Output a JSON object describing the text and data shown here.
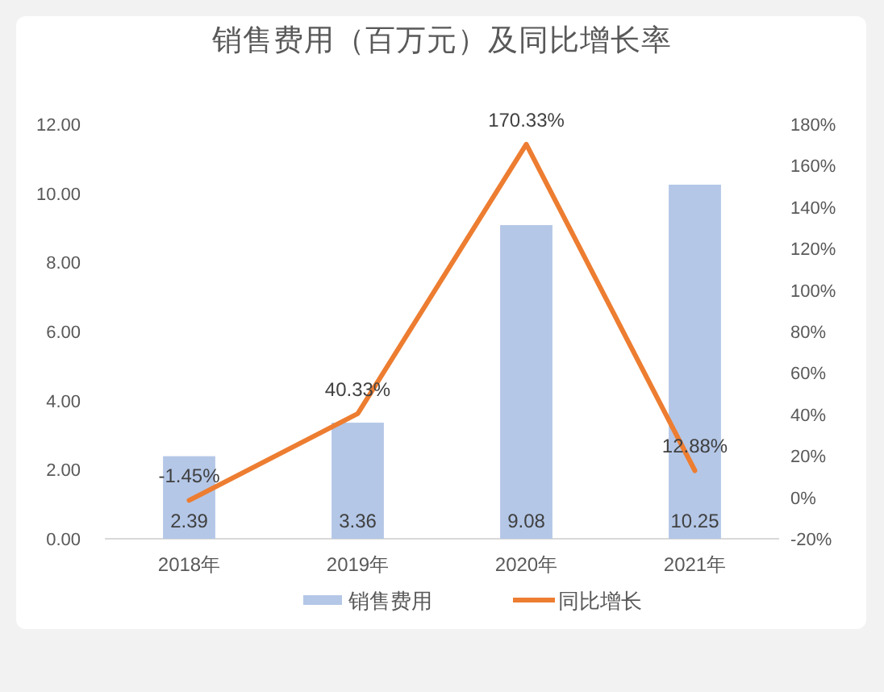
{
  "chart_data": {
    "type": "bar",
    "title": "销售费用（百万元）及同比增长率",
    "categories": [
      "2018年",
      "2019年",
      "2020年",
      "2021年"
    ],
    "series": [
      {
        "name": "销售费用",
        "color": "#b4c7e7",
        "values": [
          2.39,
          3.36,
          9.08,
          10.25
        ],
        "value_labels": [
          "2.39",
          "3.36",
          "9.08",
          "10.25"
        ]
      },
      {
        "name": "同比增长",
        "type": "line",
        "axis": "y2",
        "color": "#ed7d31",
        "values": [
          -1.45,
          40.33,
          170.33,
          12.88
        ],
        "value_labels": [
          "-1.45%",
          "40.33%",
          "170.33%",
          "12.88%"
        ]
      }
    ],
    "ylim": [
      0,
      12
    ],
    "yticks": [
      {
        "value": 0,
        "label": "0.00"
      },
      {
        "value": 2,
        "label": "2.00"
      },
      {
        "value": 4,
        "label": "4.00"
      },
      {
        "value": 6,
        "label": "6.00"
      },
      {
        "value": 8,
        "label": "8.00"
      },
      {
        "value": 10,
        "label": "10.00"
      },
      {
        "value": 12,
        "label": "12.00"
      }
    ],
    "y2lim": [
      -20,
      180
    ],
    "y2ticks": [
      {
        "value": -20,
        "label": "-20%"
      },
      {
        "value": 0,
        "label": "0%"
      },
      {
        "value": 20,
        "label": "20%"
      },
      {
        "value": 40,
        "label": "40%"
      },
      {
        "value": 60,
        "label": "60%"
      },
      {
        "value": 80,
        "label": "80%"
      },
      {
        "value": 100,
        "label": "100%"
      },
      {
        "value": 120,
        "label": "120%"
      },
      {
        "value": 140,
        "label": "140%"
      },
      {
        "value": 160,
        "label": "160%"
      },
      {
        "value": 180,
        "label": "180%"
      }
    ],
    "legend": "bottom"
  }
}
